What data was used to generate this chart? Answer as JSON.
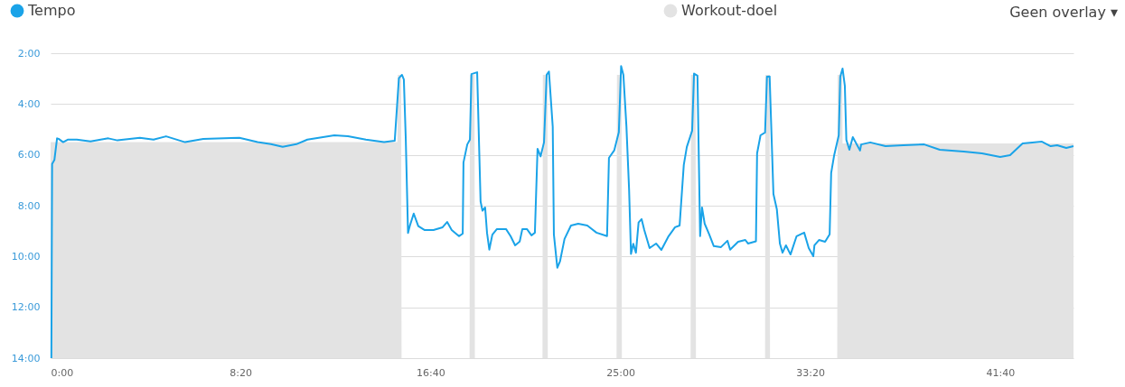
{
  "chart_data": {
    "type": "line",
    "legend": "top left",
    "grid": "y",
    "annotations": [
      "Geen overlay ▾"
    ],
    "xlim": [
      0,
      2693
    ],
    "xticks": [
      {
        "value": 0,
        "label": "0:00"
      },
      {
        "value": 500,
        "label": "8:20"
      },
      {
        "value": 1000,
        "label": "16:40"
      },
      {
        "value": 1500,
        "label": "25:00"
      },
      {
        "value": 2000,
        "label": "33:20"
      },
      {
        "value": 2500,
        "label": "41:40"
      }
    ],
    "ylim": [
      14,
      2
    ],
    "yticks": [
      {
        "value": 2,
        "label": "2:00"
      },
      {
        "value": 4,
        "label": "4:00"
      },
      {
        "value": 6,
        "label": "6:00"
      },
      {
        "value": 8,
        "label": "8:00"
      },
      {
        "value": 10,
        "label": "10:00"
      },
      {
        "value": 12,
        "label": "12:00"
      },
      {
        "value": 14,
        "label": "14:00"
      }
    ],
    "series": [
      {
        "name": "Tempo",
        "color": "#1aa3e8",
        "type": "line",
        "x": [
          2,
          4,
          10,
          17,
          21,
          33,
          45,
          69,
          105,
          152,
          176,
          235,
          271,
          304,
          354,
          402,
          497,
          545,
          580,
          611,
          647,
          676,
          747,
          783,
          830,
          878,
          906,
          917,
          925,
          930,
          935,
          941,
          946,
          956,
          968,
          985,
          1008,
          1032,
          1044,
          1056,
          1075,
          1085,
          1087,
          1097,
          1104,
          1108,
          1123,
          1132,
          1137,
          1144,
          1149,
          1155,
          1163,
          1175,
          1199,
          1211,
          1223,
          1235,
          1242,
          1254,
          1266,
          1275,
          1282,
          1290,
          1299,
          1306,
          1312,
          1322,
          1325,
          1334,
          1341,
          1353,
          1370,
          1389,
          1413,
          1437,
          1465,
          1470,
          1484,
          1496,
          1502,
          1508,
          1516,
          1523,
          1528,
          1534,
          1541,
          1548,
          1556,
          1563,
          1577,
          1594,
          1608,
          1627,
          1644,
          1656,
          1667,
          1675,
          1689,
          1694,
          1703,
          1710,
          1715,
          1722,
          1734,
          1746,
          1765,
          1782,
          1789,
          1810,
          1829,
          1836,
          1857,
          1860,
          1869,
          1881,
          1886,
          1893,
          1903,
          1912,
          1920,
          1927,
          1936,
          1948,
          1964,
          1984,
          1996,
          2008,
          2011,
          2023,
          2039,
          2051,
          2055,
          2063,
          2075,
          2079,
          2085,
          2091,
          2095,
          2103,
          2112,
          2131,
          2134,
          2158,
          2198,
          2245,
          2300,
          2341,
          2404,
          2452,
          2500,
          2526,
          2559,
          2610,
          2633,
          2650,
          2674,
          2693
        ],
        "values": [
          14,
          6.36,
          6.2,
          5.35,
          5.37,
          5.5,
          5.4,
          5.4,
          5.47,
          5.35,
          5.43,
          5.33,
          5.4,
          5.27,
          5.5,
          5.37,
          5.33,
          5.5,
          5.58,
          5.68,
          5.58,
          5.4,
          5.23,
          5.27,
          5.4,
          5.5,
          5.44,
          2.98,
          2.85,
          3.03,
          5.34,
          9.07,
          8.78,
          8.31,
          8.8,
          8.96,
          8.96,
          8.85,
          8.64,
          8.96,
          9.2,
          9.1,
          6.3,
          5.59,
          5.4,
          2.82,
          2.75,
          7.83,
          8.2,
          8.07,
          9.07,
          9.73,
          9.14,
          8.92,
          8.92,
          9.2,
          9.56,
          9.41,
          8.92,
          8.92,
          9.17,
          9.06,
          5.76,
          6.06,
          5.51,
          2.85,
          2.72,
          4.9,
          9.13,
          10.44,
          10.2,
          9.31,
          8.78,
          8.71,
          8.78,
          9.06,
          9.2,
          6.12,
          5.82,
          5.11,
          2.51,
          2.85,
          4.88,
          7.36,
          9.9,
          9.5,
          9.85,
          8.66,
          8.53,
          8.96,
          9.67,
          9.49,
          9.74,
          9.2,
          8.85,
          8.78,
          6.4,
          5.69,
          5.05,
          2.8,
          2.88,
          9.2,
          8.07,
          8.71,
          9.13,
          9.59,
          9.63,
          9.38,
          9.73,
          9.42,
          9.35,
          9.49,
          9.4,
          5.94,
          5.23,
          5.12,
          2.92,
          2.91,
          7.54,
          8.14,
          9.49,
          9.85,
          9.56,
          9.92,
          9.2,
          9.06,
          9.67,
          9.99,
          9.56,
          9.35,
          9.42,
          9.13,
          6.72,
          6.01,
          5.23,
          2.92,
          2.6,
          3.28,
          5.41,
          5.8,
          5.3,
          5.83,
          5.59,
          5.51,
          5.66,
          5.62,
          5.59,
          5.8,
          5.87,
          5.94,
          6.08,
          6.01,
          5.55,
          5.48,
          5.66,
          5.62,
          5.73,
          5.66
        ]
      },
      {
        "name": "Workout-doel",
        "color": "#e3e3e3",
        "type": "area",
        "x": [
          0,
          0,
          913,
          914,
          923,
          924,
          1103,
          1104,
          1116,
          1117,
          1295,
          1296,
          1308,
          1309,
          1490,
          1491,
          1503,
          1504,
          1685,
          1686,
          1698,
          1699,
          1881,
          1882,
          1893,
          1894,
          2071,
          2072,
          2084,
          2085,
          2693,
          2693
        ],
        "values": [
          14,
          5.5,
          5.5,
          2.85,
          2.85,
          14,
          14,
          2.85,
          2.85,
          14,
          14,
          2.85,
          2.85,
          14,
          14,
          2.85,
          2.85,
          14,
          14,
          2.85,
          2.85,
          14,
          14,
          2.85,
          2.85,
          14,
          14,
          2.85,
          2.85,
          5.55,
          5.55,
          14
        ]
      }
    ]
  }
}
